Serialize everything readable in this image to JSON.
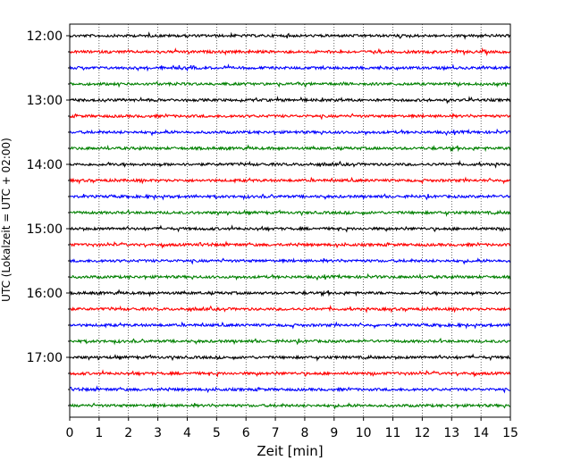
{
  "chart_data": {
    "type": "line",
    "title": "",
    "xlabel": "Zeit  [min]",
    "ylabel": "UTC (Lokalzeit = UTC + 02:00)",
    "xlim": [
      0,
      15
    ],
    "xticks": [
      0,
      1,
      2,
      3,
      4,
      5,
      6,
      7,
      8,
      9,
      10,
      11,
      12,
      13,
      14,
      15
    ],
    "x_grid": true,
    "y_grid": false,
    "ytick_labels": [
      "12:00",
      "13:00",
      "14:00",
      "15:00",
      "16:00",
      "17:00"
    ],
    "trace_interval_min": 15,
    "trace_start": "12:00",
    "trace_count": 24,
    "trace_colors": [
      "#000000",
      "#ff0000",
      "#0000ff",
      "#008000"
    ],
    "traces": [
      {
        "start": "12:00",
        "color": "#000000"
      },
      {
        "start": "12:15",
        "color": "#ff0000"
      },
      {
        "start": "12:30",
        "color": "#0000ff"
      },
      {
        "start": "12:45",
        "color": "#008000"
      },
      {
        "start": "13:00",
        "color": "#000000"
      },
      {
        "start": "13:15",
        "color": "#ff0000"
      },
      {
        "start": "13:30",
        "color": "#0000ff"
      },
      {
        "start": "13:45",
        "color": "#008000"
      },
      {
        "start": "14:00",
        "color": "#000000"
      },
      {
        "start": "14:15",
        "color": "#ff0000"
      },
      {
        "start": "14:30",
        "color": "#0000ff"
      },
      {
        "start": "14:45",
        "color": "#008000"
      },
      {
        "start": "15:00",
        "color": "#000000"
      },
      {
        "start": "15:15",
        "color": "#ff0000"
      },
      {
        "start": "15:30",
        "color": "#0000ff"
      },
      {
        "start": "15:45",
        "color": "#008000"
      },
      {
        "start": "16:00",
        "color": "#000000"
      },
      {
        "start": "16:15",
        "color": "#ff0000"
      },
      {
        "start": "16:30",
        "color": "#0000ff"
      },
      {
        "start": "16:45",
        "color": "#008000"
      },
      {
        "start": "17:00",
        "color": "#000000"
      },
      {
        "start": "17:15",
        "color": "#ff0000"
      },
      {
        "start": "17:30",
        "color": "#0000ff"
      },
      {
        "start": "17:45",
        "color": "#008000"
      }
    ]
  }
}
